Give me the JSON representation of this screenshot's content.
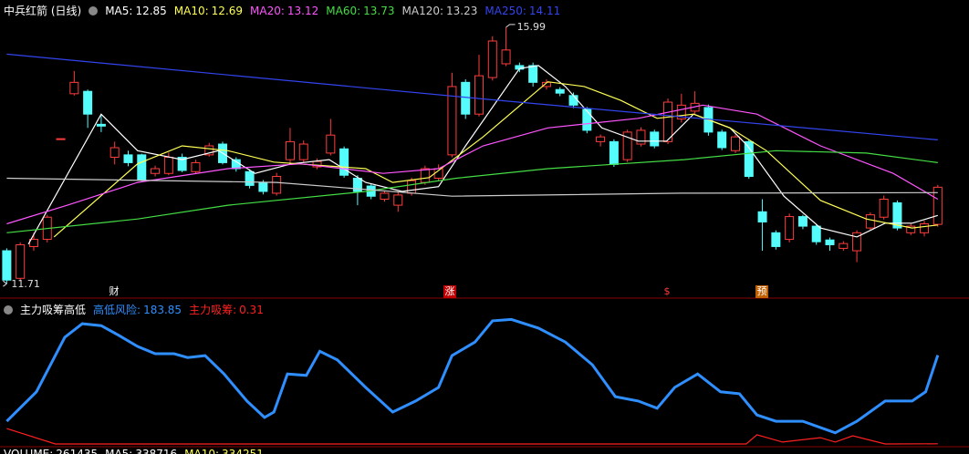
{
  "chart_data": [
    {
      "type": "candlestick",
      "title": "中兵红箭 (日线)",
      "xlim": [
        -0.5,
        70.5
      ],
      "ylim": [
        11.5,
        16.14
      ],
      "up_color": "#ff3c3c",
      "down_color": "#54fcfc",
      "ohlc": [
        [
          12.26,
          12.3,
          11.71,
          11.77
        ],
        [
          11.8,
          12.4,
          11.75,
          12.36
        ],
        [
          12.33,
          12.56,
          12.26,
          12.45
        ],
        [
          12.45,
          12.86,
          12.4,
          12.82
        ],
        [
          14.13,
          14.13,
          14.13,
          14.13
        ],
        [
          14.88,
          15.26,
          14.85,
          15.07
        ],
        [
          14.92,
          14.95,
          14.31,
          14.54
        ],
        [
          14.37,
          14.54,
          14.24,
          14.34
        ],
        [
          13.82,
          14.08,
          13.7,
          13.98
        ],
        [
          13.86,
          13.93,
          13.67,
          13.73
        ],
        [
          13.86,
          13.88,
          13.42,
          13.44
        ],
        [
          13.55,
          13.68,
          13.5,
          13.63
        ],
        [
          13.55,
          13.9,
          13.52,
          13.82
        ],
        [
          13.82,
          13.88,
          13.57,
          13.6
        ],
        [
          13.58,
          13.78,
          13.55,
          13.73
        ],
        [
          13.86,
          14.06,
          13.83,
          14.01
        ],
        [
          14.04,
          14.08,
          13.7,
          13.73
        ],
        [
          13.78,
          13.82,
          13.58,
          13.63
        ],
        [
          13.58,
          13.62,
          13.3,
          13.35
        ],
        [
          13.4,
          13.44,
          13.2,
          13.25
        ],
        [
          13.22,
          13.56,
          13.18,
          13.5
        ],
        [
          13.78,
          14.31,
          13.72,
          14.08
        ],
        [
          13.78,
          14.1,
          13.74,
          14.04
        ],
        [
          13.66,
          13.8,
          13.62,
          13.75
        ],
        [
          13.89,
          14.46,
          13.85,
          14.19
        ],
        [
          13.96,
          14.0,
          13.48,
          13.52
        ],
        [
          13.47,
          13.52,
          13.02,
          13.25
        ],
        [
          13.34,
          13.38,
          13.12,
          13.17
        ],
        [
          13.12,
          13.26,
          13.08,
          13.22
        ],
        [
          13.02,
          13.24,
          12.91,
          13.19
        ],
        [
          13.22,
          13.48,
          13.18,
          13.43
        ],
        [
          13.4,
          13.68,
          13.36,
          13.63
        ],
        [
          13.47,
          13.7,
          13.42,
          13.63
        ],
        [
          13.86,
          15.23,
          13.82,
          15.0
        ],
        [
          15.07,
          15.12,
          14.46,
          14.54
        ],
        [
          14.54,
          15.53,
          14.5,
          15.18
        ],
        [
          15.15,
          15.84,
          15.1,
          15.76
        ],
        [
          15.38,
          15.99,
          15.34,
          15.61
        ],
        [
          15.35,
          15.4,
          15.24,
          15.29
        ],
        [
          15.35,
          15.4,
          15.0,
          15.07
        ],
        [
          15.0,
          15.12,
          14.95,
          15.07
        ],
        [
          14.95,
          14.99,
          14.84,
          14.89
        ],
        [
          14.85,
          14.9,
          14.64,
          14.69
        ],
        [
          14.62,
          14.66,
          14.22,
          14.27
        ],
        [
          14.08,
          14.2,
          14.0,
          14.16
        ],
        [
          14.08,
          14.12,
          13.66,
          13.7
        ],
        [
          13.78,
          14.28,
          13.74,
          14.24
        ],
        [
          14.04,
          14.32,
          14.0,
          14.27
        ],
        [
          14.24,
          14.28,
          13.97,
          14.01
        ],
        [
          14.08,
          14.8,
          14.04,
          14.74
        ],
        [
          14.46,
          14.88,
          14.4,
          14.69
        ],
        [
          14.59,
          14.92,
          14.54,
          14.72
        ],
        [
          14.65,
          14.7,
          14.18,
          14.24
        ],
        [
          14.24,
          14.28,
          13.94,
          13.98
        ],
        [
          13.93,
          14.2,
          13.89,
          14.16
        ],
        [
          14.08,
          14.12,
          13.46,
          13.5
        ],
        [
          12.91,
          13.12,
          12.26,
          12.74
        ],
        [
          12.56,
          12.6,
          12.28,
          12.33
        ],
        [
          12.45,
          12.88,
          12.4,
          12.83
        ],
        [
          12.83,
          12.86,
          12.62,
          12.67
        ],
        [
          12.67,
          12.7,
          12.36,
          12.41
        ],
        [
          12.44,
          12.48,
          12.26,
          12.36
        ],
        [
          12.3,
          12.42,
          12.26,
          12.38
        ],
        [
          12.26,
          12.6,
          12.07,
          12.56
        ],
        [
          12.64,
          12.9,
          12.6,
          12.86
        ],
        [
          12.82,
          13.18,
          12.78,
          13.12
        ],
        [
          13.06,
          13.1,
          12.6,
          12.64
        ],
        [
          12.56,
          12.72,
          12.52,
          12.67
        ],
        [
          12.56,
          12.76,
          12.5,
          12.71
        ],
        [
          12.7,
          13.36,
          12.66,
          13.32
        ]
      ],
      "series": [
        {
          "name": "MA5:",
          "last": 12.85,
          "color": "#ffffff",
          "x": [
            1.6,
            7,
            9.7,
            13,
            15.7,
            18.4,
            21.1,
            23.9,
            26.6,
            29.3,
            32,
            34,
            38,
            39.4,
            41.4,
            44.1,
            46.8,
            48.9,
            50.9,
            53.6,
            54.9,
            57.6,
            60.3,
            63,
            65.1,
            67.1,
            69
          ],
          "values": [
            12.37,
            14.54,
            13.93,
            13.78,
            13.93,
            13.55,
            13.71,
            13.78,
            13.4,
            13.25,
            13.33,
            14.01,
            15.3,
            15.35,
            15.0,
            14.31,
            14.09,
            14.09,
            14.54,
            14.31,
            14.01,
            13.17,
            12.64,
            12.49,
            12.72,
            12.72,
            12.85
          ]
        },
        {
          "name": "MA10:",
          "last": 12.69,
          "color": "#ffff55",
          "x": [
            3.5,
            9.7,
            13,
            16.4,
            19.8,
            26.6,
            28.6,
            31.3,
            35.3,
            40.1,
            42.8,
            45.5,
            48.2,
            50.9,
            53.6,
            56.3,
            60.3,
            63.7,
            67.1,
            69
          ],
          "values": [
            12.49,
            13.71,
            14.01,
            13.93,
            13.74,
            13.63,
            13.4,
            13.48,
            14.16,
            15.08,
            15.0,
            14.77,
            14.47,
            14.54,
            14.31,
            13.93,
            13.1,
            12.79,
            12.64,
            12.69
          ]
        },
        {
          "name": "MA20:",
          "last": 13.12,
          "color": "#ff55ff",
          "x": [
            0,
            4.5,
            9.7,
            16.4,
            21.8,
            27.9,
            32,
            35.3,
            40.1,
            46.8,
            51.6,
            55.6,
            60.3,
            65.7,
            69
          ],
          "values": [
            12.71,
            13.02,
            13.4,
            13.63,
            13.71,
            13.55,
            13.63,
            14.01,
            14.31,
            14.47,
            14.69,
            14.54,
            14.01,
            13.55,
            13.12
          ]
        },
        {
          "name": "MA60:",
          "last": 13.73,
          "color": "#44dd44",
          "x": [
            0,
            9.7,
            16.4,
            26.6,
            33.3,
            40.1,
            50.2,
            57,
            63.7,
            69
          ],
          "values": [
            12.56,
            12.79,
            13.02,
            13.25,
            13.47,
            13.63,
            13.78,
            13.93,
            13.89,
            13.73
          ]
        },
        {
          "name": "MA120:",
          "last": 13.23,
          "color": "#cccccc",
          "x": [
            0,
            20,
            33,
            50,
            69
          ],
          "values": [
            13.47,
            13.4,
            13.17,
            13.22,
            13.23
          ]
        },
        {
          "name": "MA250:",
          "last": 14.11,
          "color": "#3344ee",
          "x": [
            0,
            35,
            69
          ],
          "values": [
            15.54,
            14.8,
            14.11
          ]
        }
      ]
    },
    {
      "type": "line",
      "title": "主力吸筹高低",
      "xlim": [
        -0.5,
        70.5
      ],
      "ylim": [
        0,
        270
      ],
      "series": [
        {
          "name": "高低风险:",
          "last": 183.85,
          "color": "#2f8fff",
          "x": [
            0,
            2.2,
            4.3,
            5.6,
            7,
            8.3,
            9.7,
            11,
            12.4,
            13.4,
            14.7,
            16.1,
            17.8,
            19.1,
            19.8,
            20.8,
            22.2,
            23.2,
            24.5,
            26.6,
            28.6,
            30.3,
            32,
            33,
            34.7,
            36,
            37.4,
            39.4,
            41.4,
            43.4,
            45.1,
            46.8,
            48.2,
            49.5,
            51.2,
            52.9,
            54.3,
            55.6,
            57,
            59,
            61.4,
            63,
            65.1,
            67.1,
            68.1,
            69
          ],
          "values": [
            47,
            108,
            221,
            249,
            245,
            225,
            202,
            187,
            187,
            179,
            183,
            145,
            89,
            55,
            66,
            145,
            142,
            192,
            174,
            117,
            66,
            89,
            117,
            183,
            211,
            255,
            258,
            240,
            211,
            164,
            98,
            89,
            74,
            117,
            145,
            108,
            104,
            60,
            47,
            47,
            23,
            47,
            89,
            89,
            108,
            183.85
          ]
        },
        {
          "name": "主力吸筹:",
          "last": 0.31,
          "color": "#ff2020",
          "x": [
            0,
            3.6,
            54.8,
            55.6,
            57.5,
            60.3,
            61.4,
            62.7,
            65.1,
            69
          ],
          "values": [
            32,
            0,
            0,
            19,
            4,
            13,
            4,
            17,
            0,
            0.31
          ]
        }
      ]
    }
  ],
  "annotations": [
    "财",
    "涨",
    "$",
    "预"
  ],
  "volume": [
    {
      "name": "VOLUME:",
      "value": 261435,
      "color": "#ffffff"
    },
    {
      "name": "MA5:",
      "value": 338716,
      "color": "#ffffff"
    },
    {
      "name": "MA10:",
      "value": 334251,
      "color": "#ffff55"
    }
  ]
}
